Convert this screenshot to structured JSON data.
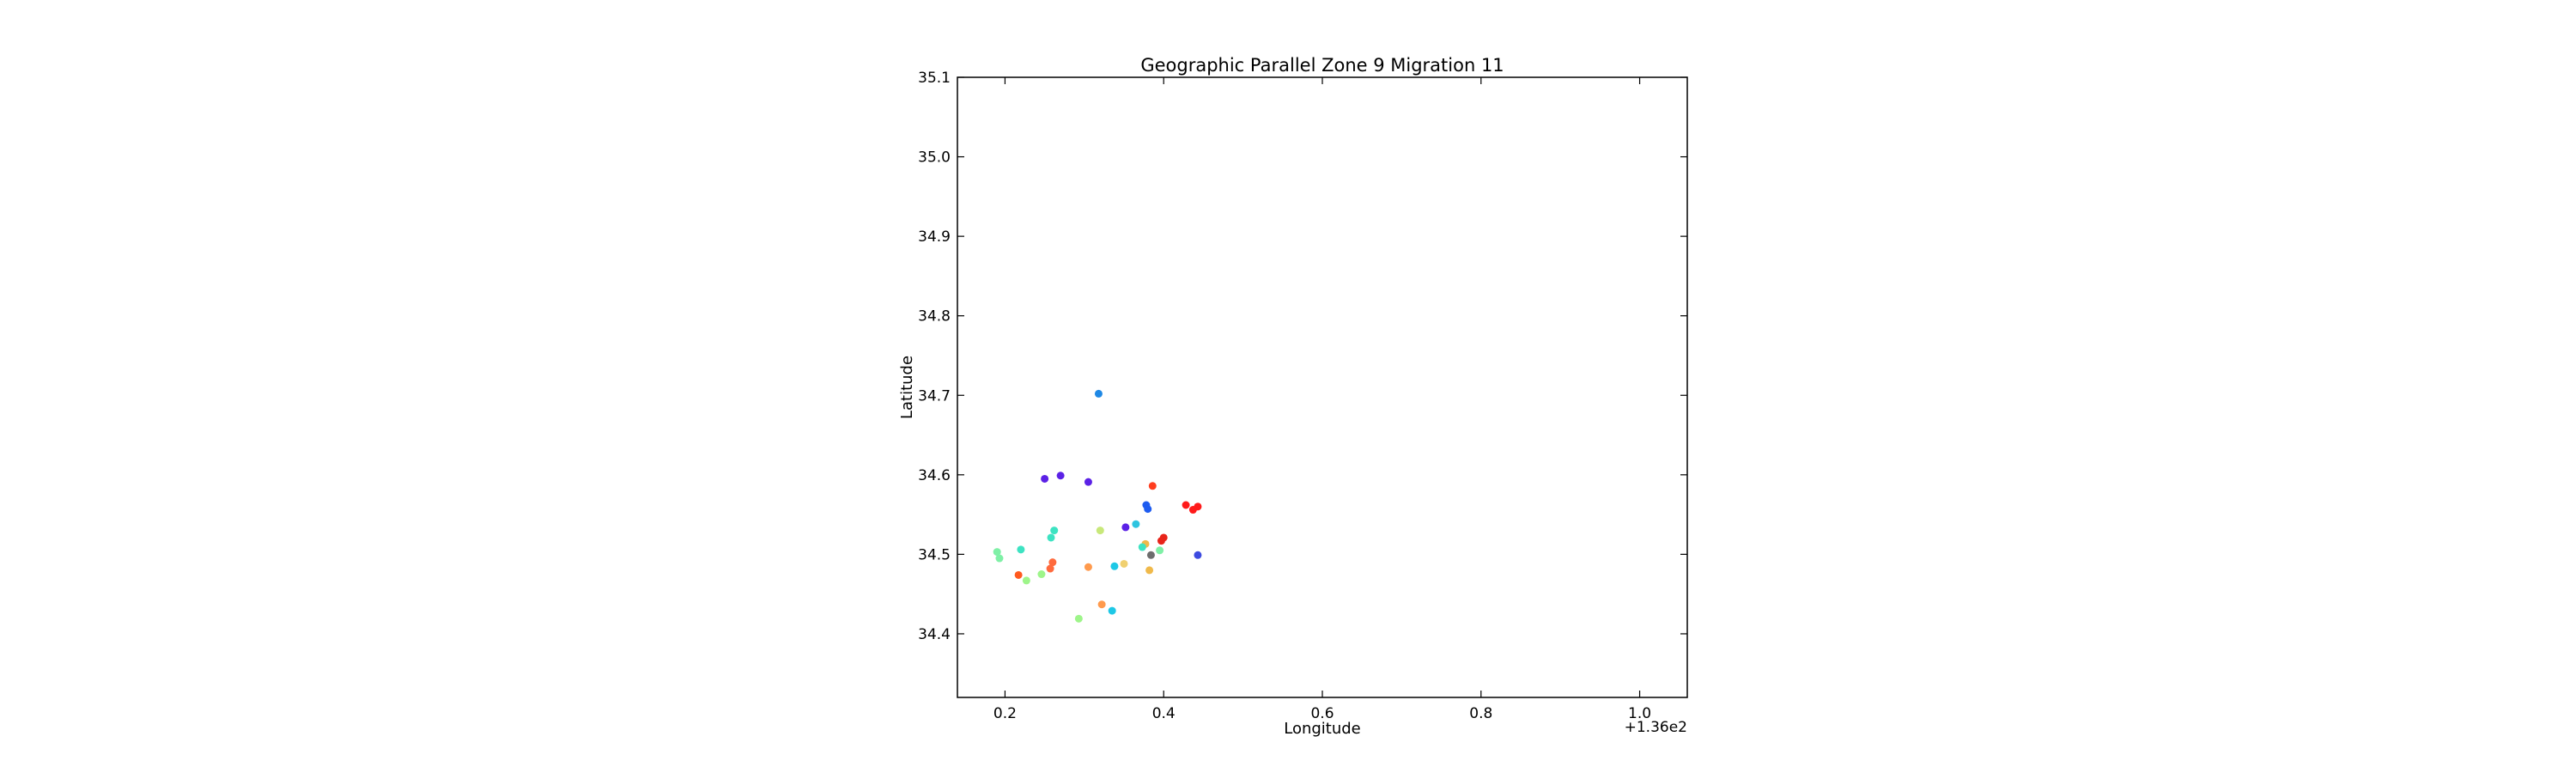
{
  "chart_data": {
    "type": "scatter",
    "title": "Geographic Parallel Zone 9 Migration 11",
    "xlabel": "Longitude",
    "ylabel": "Latitude",
    "xlim": [
      136.14,
      137.06
    ],
    "ylim": [
      34.32,
      35.1
    ],
    "x_ticks": [
      136.2,
      136.4,
      136.6,
      136.8,
      137.0
    ],
    "x_tick_labels": [
      "0.2",
      "0.4",
      "0.6",
      "0.8",
      "1.0"
    ],
    "x_offset_label": "+1.36e2",
    "y_ticks": [
      34.4,
      34.5,
      34.6,
      34.7,
      34.8,
      34.9,
      35.0,
      35.1
    ],
    "y_tick_labels": [
      "34.4",
      "34.5",
      "34.6",
      "34.7",
      "34.8",
      "34.9",
      "35.0",
      "35.1"
    ],
    "grid": false,
    "legend": "none",
    "points": [
      {
        "x": 136.318,
        "y": 34.702,
        "color": "#1e88e5"
      },
      {
        "x": 136.25,
        "y": 34.595,
        "color": "#5b21e6"
      },
      {
        "x": 136.27,
        "y": 34.599,
        "color": "#5b21e6"
      },
      {
        "x": 136.305,
        "y": 34.591,
        "color": "#5b21e6"
      },
      {
        "x": 136.386,
        "y": 34.586,
        "color": "#ff3d1f"
      },
      {
        "x": 136.378,
        "y": 34.562,
        "color": "#1e5cf0"
      },
      {
        "x": 136.38,
        "y": 34.557,
        "color": "#1e5cf0"
      },
      {
        "x": 136.428,
        "y": 34.562,
        "color": "#ff1a1a"
      },
      {
        "x": 136.437,
        "y": 34.556,
        "color": "#ff1a1a"
      },
      {
        "x": 136.443,
        "y": 34.56,
        "color": "#ff1a1a"
      },
      {
        "x": 136.352,
        "y": 34.534,
        "color": "#5b21e6"
      },
      {
        "x": 136.365,
        "y": 34.538,
        "color": "#2ec4e0"
      },
      {
        "x": 136.32,
        "y": 34.53,
        "color": "#c8e87a"
      },
      {
        "x": 136.262,
        "y": 34.53,
        "color": "#3de3c2"
      },
      {
        "x": 136.258,
        "y": 34.521,
        "color": "#3de3c2"
      },
      {
        "x": 136.4,
        "y": 34.521,
        "color": "#e8241a"
      },
      {
        "x": 136.397,
        "y": 34.517,
        "color": "#e8241a"
      },
      {
        "x": 136.377,
        "y": 34.513,
        "color": "#f0b94a"
      },
      {
        "x": 136.373,
        "y": 34.509,
        "color": "#3de3c2"
      },
      {
        "x": 136.395,
        "y": 34.505,
        "color": "#7ff0a6"
      },
      {
        "x": 136.384,
        "y": 34.499,
        "color": "#6d6d6d"
      },
      {
        "x": 136.22,
        "y": 34.506,
        "color": "#3de3c2"
      },
      {
        "x": 136.19,
        "y": 34.503,
        "color": "#7ff0a6"
      },
      {
        "x": 136.193,
        "y": 34.495,
        "color": "#7ff0a6"
      },
      {
        "x": 136.443,
        "y": 34.499,
        "color": "#3d4be0"
      },
      {
        "x": 136.26,
        "y": 34.49,
        "color": "#ff6a3d"
      },
      {
        "x": 136.257,
        "y": 34.482,
        "color": "#ff6a3d"
      },
      {
        "x": 136.35,
        "y": 34.488,
        "color": "#f0d070"
      },
      {
        "x": 136.338,
        "y": 34.485,
        "color": "#1ec8e6"
      },
      {
        "x": 136.305,
        "y": 34.484,
        "color": "#ff9a4d"
      },
      {
        "x": 136.382,
        "y": 34.48,
        "color": "#f0b94a"
      },
      {
        "x": 136.217,
        "y": 34.474,
        "color": "#ff5a1f"
      },
      {
        "x": 136.246,
        "y": 34.475,
        "color": "#9ef58a"
      },
      {
        "x": 136.227,
        "y": 34.467,
        "color": "#9ef58a"
      },
      {
        "x": 136.322,
        "y": 34.437,
        "color": "#ff9a4d"
      },
      {
        "x": 136.335,
        "y": 34.429,
        "color": "#1ec8e6"
      },
      {
        "x": 136.293,
        "y": 34.419,
        "color": "#9ef58a"
      }
    ]
  }
}
